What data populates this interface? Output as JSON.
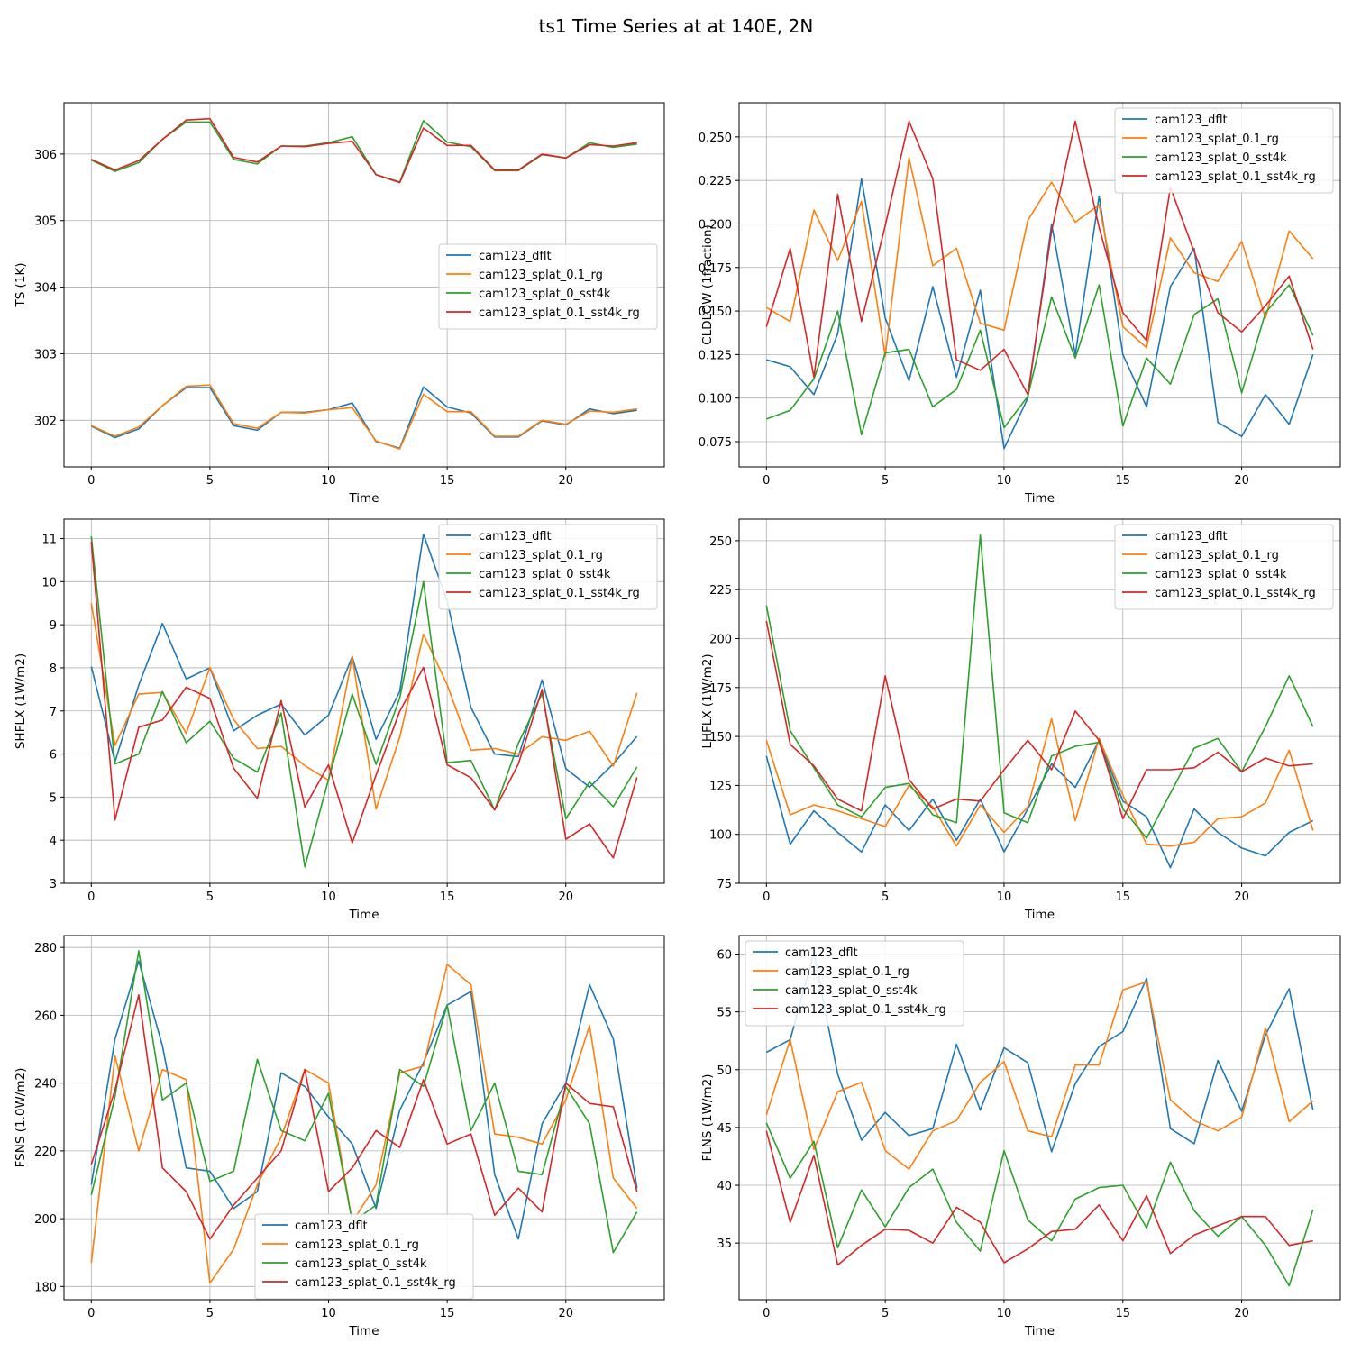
{
  "title": "ts1 Time Series at at 140E, 2N",
  "colors": {
    "cam123_dflt": "#1f77b4",
    "cam123_splat_0.1_rg": "#ff7f0e",
    "cam123_splat_0_sst4k": "#2ca02c",
    "cam123_splat_0.1_sst4k_rg": "#d62728"
  },
  "chart_data": [
    {
      "type": "line",
      "xlabel": "Time",
      "ylabel": "TS (1K)",
      "legend": "center-right",
      "xlim": [
        -1.15,
        24.15
      ],
      "ylim": [
        301.3,
        306.77
      ],
      "xticks": [
        0,
        5,
        10,
        15,
        20
      ],
      "yticks": [
        302,
        303,
        304,
        305,
        306
      ],
      "ytick_labels": [
        "302",
        "303",
        "304",
        "305",
        "306"
      ],
      "x": [
        0,
        1,
        2,
        3,
        4,
        5,
        6,
        7,
        8,
        9,
        10,
        11,
        12,
        13,
        14,
        15,
        16,
        17,
        18,
        19,
        20,
        21,
        22,
        23
      ],
      "series": [
        {
          "name": "cam123_dflt",
          "values": [
            301.91,
            301.74,
            301.87,
            302.22,
            302.49,
            302.49,
            301.92,
            301.85,
            302.12,
            302.12,
            302.16,
            302.26,
            301.68,
            301.58,
            302.5,
            302.2,
            302.11,
            301.75,
            301.75,
            301.99,
            301.93,
            302.17,
            302.1,
            302.15
          ]
        },
        {
          "name": "cam123_splat_0.1_rg",
          "values": [
            301.92,
            301.76,
            301.9,
            302.22,
            302.51,
            302.53,
            301.95,
            301.88,
            302.12,
            302.11,
            302.16,
            302.19,
            301.69,
            301.57,
            302.39,
            302.13,
            302.13,
            301.76,
            301.76,
            302.0,
            301.94,
            302.14,
            302.12,
            302.17
          ]
        },
        {
          "name": "cam123_splat_0_sst4k",
          "values": [
            305.91,
            305.74,
            305.87,
            306.22,
            306.48,
            306.48,
            305.92,
            305.85,
            306.12,
            306.12,
            306.17,
            306.26,
            305.69,
            305.58,
            306.5,
            306.18,
            306.11,
            305.75,
            305.75,
            305.99,
            305.94,
            306.17,
            306.1,
            306.15
          ]
        },
        {
          "name": "cam123_splat_0.1_sst4k_rg",
          "values": [
            305.92,
            305.76,
            305.9,
            306.22,
            306.51,
            306.53,
            305.95,
            305.88,
            306.12,
            306.11,
            306.16,
            306.19,
            305.69,
            305.57,
            306.39,
            306.13,
            306.13,
            305.76,
            305.76,
            306.0,
            305.94,
            306.14,
            306.12,
            306.17
          ]
        }
      ]
    },
    {
      "type": "line",
      "xlabel": "Time",
      "ylabel": "CLDLOW (1fraction)",
      "legend": "upper-right",
      "xlim": [
        -1.15,
        24.15
      ],
      "ylim": [
        0.0605,
        0.2696
      ],
      "xticks": [
        0,
        5,
        10,
        15,
        20
      ],
      "yticks": [
        0.075,
        0.1,
        0.125,
        0.15,
        0.175,
        0.2,
        0.225,
        0.25
      ],
      "ytick_labels": [
        "0.075",
        "0.100",
        "0.125",
        "0.150",
        "0.175",
        "0.200",
        "0.225",
        "0.250"
      ],
      "x": [
        0,
        1,
        2,
        3,
        4,
        5,
        6,
        7,
        8,
        9,
        10,
        11,
        12,
        13,
        14,
        15,
        16,
        17,
        18,
        19,
        20,
        21,
        22,
        23
      ],
      "series": [
        {
          "name": "cam123_dflt",
          "values": [
            0.122,
            0.118,
            0.102,
            0.137,
            0.226,
            0.146,
            0.11,
            0.164,
            0.112,
            0.162,
            0.071,
            0.1,
            0.2,
            0.125,
            0.216,
            0.125,
            0.095,
            0.164,
            0.186,
            0.086,
            0.078,
            0.102,
            0.085,
            0.125
          ]
        },
        {
          "name": "cam123_splat_0.1_rg",
          "values": [
            0.152,
            0.144,
            0.208,
            0.179,
            0.213,
            0.124,
            0.238,
            0.176,
            0.186,
            0.143,
            0.139,
            0.202,
            0.224,
            0.201,
            0.211,
            0.141,
            0.129,
            0.192,
            0.172,
            0.167,
            0.19,
            0.146,
            0.196,
            0.18
          ]
        },
        {
          "name": "cam123_splat_0_sst4k",
          "values": [
            0.088,
            0.093,
            0.111,
            0.15,
            0.079,
            0.126,
            0.128,
            0.095,
            0.105,
            0.139,
            0.083,
            0.101,
            0.158,
            0.123,
            0.165,
            0.084,
            0.123,
            0.108,
            0.148,
            0.157,
            0.103,
            0.149,
            0.165,
            0.136
          ]
        },
        {
          "name": "cam123_splat_0.1_sst4k_rg",
          "values": [
            0.141,
            0.186,
            0.112,
            0.217,
            0.144,
            0.199,
            0.259,
            0.226,
            0.122,
            0.116,
            0.128,
            0.102,
            0.196,
            0.259,
            0.198,
            0.149,
            0.133,
            0.221,
            0.184,
            0.149,
            0.138,
            0.153,
            0.17,
            0.128
          ]
        }
      ]
    },
    {
      "type": "line",
      "xlabel": "Time",
      "ylabel": "SHFLX (1W/m2)",
      "legend": "upper-right",
      "xlim": [
        -1.15,
        24.15
      ],
      "ylim": [
        3.0,
        11.45
      ],
      "xticks": [
        0,
        5,
        10,
        15,
        20
      ],
      "yticks": [
        3,
        4,
        5,
        6,
        7,
        8,
        9,
        10,
        11
      ],
      "ytick_labels": [
        "3",
        "4",
        "5",
        "6",
        "7",
        "8",
        "9",
        "10",
        "11"
      ],
      "x": [
        0,
        1,
        2,
        3,
        4,
        5,
        6,
        7,
        8,
        9,
        10,
        11,
        12,
        13,
        14,
        15,
        16,
        17,
        18,
        19,
        20,
        21,
        22,
        23
      ],
      "series": [
        {
          "name": "cam123_dflt",
          "values": [
            8.03,
            5.82,
            7.6,
            9.03,
            7.74,
            8.0,
            6.54,
            6.9,
            7.16,
            6.44,
            6.9,
            8.26,
            6.34,
            7.45,
            11.1,
            9.55,
            7.08,
            6.0,
            5.94,
            7.72,
            5.66,
            5.23,
            5.77,
            6.41
          ]
        },
        {
          "name": "cam123_splat_0.1_rg",
          "values": [
            9.5,
            6.2,
            7.39,
            7.43,
            6.48,
            8.01,
            6.8,
            6.13,
            6.18,
            5.73,
            5.39,
            8.25,
            4.72,
            6.39,
            8.78,
            7.61,
            6.09,
            6.13,
            6.0,
            6.4,
            6.32,
            6.53,
            5.72,
            7.42
          ]
        },
        {
          "name": "cam123_splat_0_sst4k",
          "values": [
            11.05,
            5.77,
            6.0,
            7.45,
            6.26,
            6.76,
            5.9,
            5.58,
            6.95,
            3.38,
            5.41,
            7.39,
            5.76,
            7.3,
            10.0,
            5.8,
            5.85,
            4.7,
            6.25,
            7.4,
            4.5,
            5.35,
            4.78,
            5.7
          ]
        },
        {
          "name": "cam123_splat_0.1_sst4k_rg",
          "values": [
            10.93,
            4.47,
            6.62,
            6.79,
            7.55,
            7.29,
            5.67,
            4.97,
            7.24,
            4.77,
            5.75,
            3.94,
            5.51,
            6.99,
            8.01,
            5.75,
            5.45,
            4.7,
            5.77,
            7.5,
            4.02,
            4.38,
            3.59,
            5.46
          ]
        }
      ]
    },
    {
      "type": "line",
      "xlabel": "Time",
      "ylabel": "LHFLX (1W/m2)",
      "legend": "upper-right",
      "xlim": [
        -1.15,
        24.15
      ],
      "ylim": [
        75,
        261
      ],
      "xticks": [
        0,
        5,
        10,
        15,
        20
      ],
      "yticks": [
        75,
        100,
        125,
        150,
        175,
        200,
        225,
        250
      ],
      "ytick_labels": [
        "75",
        "100",
        "125",
        "150",
        "175",
        "200",
        "225",
        "250"
      ],
      "x": [
        0,
        1,
        2,
        3,
        4,
        5,
        6,
        7,
        8,
        9,
        10,
        11,
        12,
        13,
        14,
        15,
        16,
        17,
        18,
        19,
        20,
        21,
        22,
        23
      ],
      "series": [
        {
          "name": "cam123_dflt",
          "values": [
            140,
            95,
            112,
            101,
            91,
            115,
            102,
            118,
            97,
            118,
            91,
            113,
            136,
            124,
            148,
            117,
            109,
            83,
            113,
            101,
            93,
            89,
            101,
            107
          ]
        },
        {
          "name": "cam123_splat_0.1_rg",
          "values": [
            148,
            110,
            115,
            112,
            108,
            104,
            125,
            114,
            94,
            115,
            101,
            114,
            159,
            107,
            149,
            120,
            95,
            94,
            96,
            108,
            109,
            116,
            143,
            102
          ]
        },
        {
          "name": "cam123_splat_0_sst4k",
          "values": [
            217,
            153,
            134,
            115,
            109,
            124,
            126,
            110,
            106,
            253,
            111,
            106,
            140,
            145,
            147,
            113,
            98,
            121,
            144,
            149,
            132,
            155,
            181,
            155
          ]
        },
        {
          "name": "cam123_splat_0.1_sst4k_rg",
          "values": [
            209,
            146,
            135,
            118,
            112,
            181,
            128,
            113,
            118,
            117,
            133,
            148,
            133,
            163,
            148,
            108,
            133,
            133,
            134,
            142,
            132,
            139,
            135,
            136
          ]
        }
      ]
    },
    {
      "type": "line",
      "xlabel": "Time",
      "ylabel": "FSNS (1.0W/m2)",
      "legend": "lower-center",
      "xlim": [
        -1.15,
        24.15
      ],
      "ylim": [
        176.1,
        283.5
      ],
      "xticks": [
        0,
        5,
        10,
        15,
        20
      ],
      "yticks": [
        180,
        200,
        220,
        240,
        260,
        280
      ],
      "ytick_labels": [
        "180",
        "200",
        "220",
        "240",
        "260",
        "280"
      ],
      "x": [
        0,
        1,
        2,
        3,
        4,
        5,
        6,
        7,
        8,
        9,
        10,
        11,
        12,
        13,
        14,
        15,
        16,
        17,
        18,
        19,
        20,
        21,
        22,
        23
      ],
      "series": [
        {
          "name": "cam123_dflt",
          "values": [
            210,
            253,
            276,
            251,
            215,
            214,
            203,
            208,
            243,
            239,
            230,
            222,
            203,
            232,
            246,
            263,
            267,
            213,
            194,
            228,
            240,
            269,
            253,
            209
          ]
        },
        {
          "name": "cam123_splat_0.1_rg",
          "values": [
            187,
            248,
            220,
            244,
            241,
            181,
            191,
            210,
            224,
            244,
            240,
            199,
            210,
            243,
            245,
            275,
            269,
            225,
            224,
            222,
            235,
            257,
            212,
            203
          ]
        },
        {
          "name": "cam123_splat_0_sst4k",
          "values": [
            207,
            236,
            279,
            235,
            240,
            211,
            214,
            247,
            226,
            223,
            237,
            199,
            204,
            244,
            239,
            263,
            226,
            240,
            214,
            213,
            239,
            228,
            190,
            202
          ]
        },
        {
          "name": "cam123_splat_0.1_sst4k_rg",
          "values": [
            216,
            238,
            266,
            215,
            208,
            194,
            204,
            212,
            220,
            244,
            208,
            215,
            226,
            221,
            241,
            222,
            225,
            201,
            209,
            202,
            240,
            234,
            233,
            208
          ]
        }
      ]
    },
    {
      "type": "line",
      "xlabel": "Time",
      "ylabel": "FLNS (1W/m2)",
      "legend": "upper-left",
      "xlim": [
        -1.15,
        24.15
      ],
      "ylim": [
        30.1,
        61.6
      ],
      "xticks": [
        0,
        5,
        10,
        15,
        20
      ],
      "yticks": [
        35,
        40,
        45,
        50,
        55,
        60
      ],
      "ytick_labels": [
        "35",
        "40",
        "45",
        "50",
        "55",
        "60"
      ],
      "x": [
        0,
        1,
        2,
        3,
        4,
        5,
        6,
        7,
        8,
        9,
        10,
        11,
        12,
        13,
        14,
        15,
        16,
        17,
        18,
        19,
        20,
        21,
        22,
        23
      ],
      "series": [
        {
          "name": "cam123_dflt",
          "values": [
            51.5,
            52.6,
            60.1,
            49.6,
            43.9,
            46.3,
            44.3,
            44.9,
            52.2,
            46.5,
            51.9,
            50.6,
            42.9,
            48.8,
            52.0,
            53.3,
            57.9,
            44.9,
            43.6,
            50.8,
            46.4,
            53.0,
            57.0,
            46.5
          ]
        },
        {
          "name": "cam123_splat_0.1_rg",
          "values": [
            46.1,
            52.6,
            43.1,
            48.1,
            48.9,
            43.0,
            41.4,
            44.7,
            45.6,
            48.9,
            50.7,
            44.7,
            44.2,
            50.4,
            50.4,
            56.9,
            57.6,
            47.4,
            45.6,
            44.7,
            45.9,
            53.6,
            45.5,
            47.3
          ]
        },
        {
          "name": "cam123_splat_0_sst4k",
          "values": [
            45.4,
            40.6,
            43.8,
            34.6,
            39.6,
            36.4,
            39.8,
            41.4,
            36.8,
            34.3,
            43.0,
            37.0,
            35.2,
            38.8,
            39.8,
            40.0,
            36.3,
            42.0,
            37.8,
            35.6,
            37.3,
            34.8,
            31.3,
            37.9
          ]
        },
        {
          "name": "cam123_splat_0.1_sst4k_rg",
          "values": [
            44.7,
            36.8,
            42.6,
            33.1,
            34.8,
            36.2,
            36.1,
            35.0,
            38.1,
            36.8,
            33.3,
            34.5,
            36.0,
            36.2,
            38.3,
            35.2,
            39.1,
            34.1,
            35.7,
            36.5,
            37.3,
            37.3,
            34.8,
            35.2
          ]
        }
      ]
    }
  ]
}
